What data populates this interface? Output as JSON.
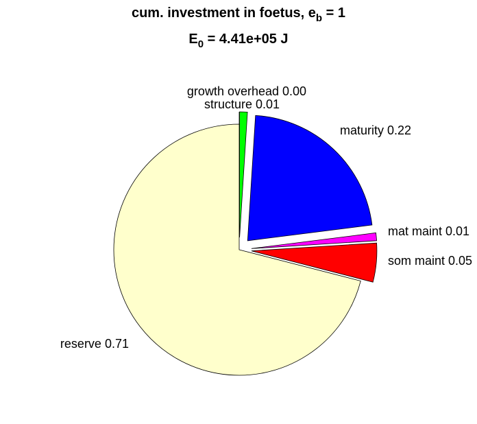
{
  "chart_data": {
    "type": "pie",
    "title": {
      "text": "cum. investment in foetus, e",
      "sub": "b",
      "tail": " = 1"
    },
    "subtitle": {
      "text": "E",
      "sub": "0",
      "tail": " = 4.41e+05 J"
    },
    "categories": [
      "growth overhead",
      "structure",
      "maturity",
      "mat maint",
      "som maint",
      "reserve"
    ],
    "values": [
      0.0,
      0.01,
      0.22,
      0.01,
      0.05,
      0.71
    ],
    "value_labels": [
      "0.00",
      "0.01",
      "0.22",
      "0.01",
      "0.05",
      "0.71"
    ],
    "colors": [
      "#ffffff",
      "#00ff00",
      "#0000ff",
      "#ff00ff",
      "#ff0000",
      "#ffffcc"
    ],
    "explode": [
      1,
      1,
      1,
      1,
      1,
      0
    ],
    "direction": "clockwise"
  }
}
